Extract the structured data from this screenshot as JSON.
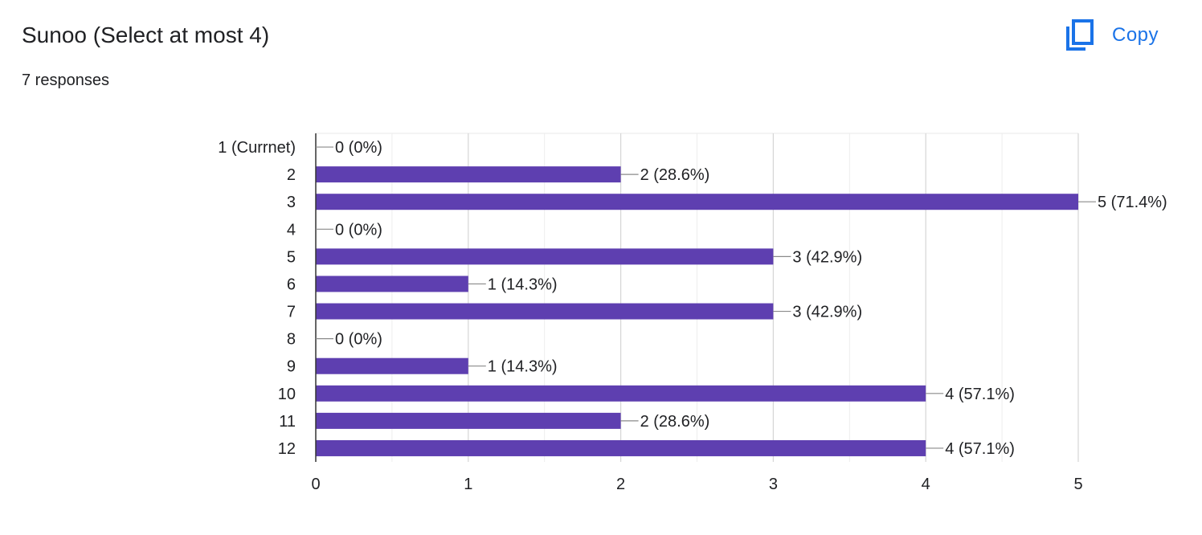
{
  "question": {
    "title": "Sunoo (Select at most 4)",
    "responses": "7 responses"
  },
  "toolbar": {
    "copy_label": "Copy",
    "copy_icon": "copy-icon",
    "accent_color": "#1a73e8"
  },
  "chart_data": {
    "type": "bar",
    "orientation": "horizontal",
    "categories": [
      "1 (Currnet)",
      "2",
      "3",
      "4",
      "5",
      "6",
      "7",
      "8",
      "9",
      "10",
      "11",
      "12"
    ],
    "values": [
      0,
      2,
      5,
      0,
      3,
      1,
      3,
      0,
      1,
      4,
      2,
      4
    ],
    "data_labels": [
      "0 (0%)",
      "2 (28.6%)",
      "5 (71.4%)",
      "0 (0%)",
      "3 (42.9%)",
      "1 (14.3%)",
      "3 (42.9%)",
      "0 (0%)",
      "1 (14.3%)",
      "4 (57.1%)",
      "2 (28.6%)",
      "4 (57.1%)"
    ],
    "x_ticks": [
      0,
      1,
      2,
      3,
      4,
      5
    ],
    "xlim": [
      0,
      5
    ],
    "grid": true,
    "bar_color": "#5e3fb0",
    "title": "",
    "xlabel": "",
    "ylabel": ""
  }
}
